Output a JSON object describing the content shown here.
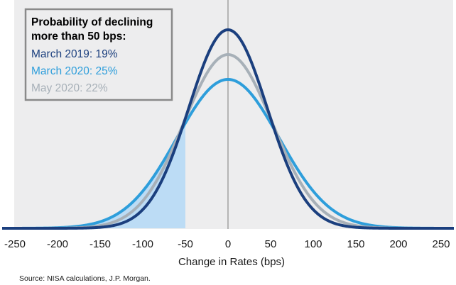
{
  "chart_data": {
    "type": "line",
    "xlabel": "Change in Rates (bps)",
    "ylabel": "",
    "xlim": [
      -265,
      265
    ],
    "x_ticks": [
      -250,
      -200,
      -150,
      -100,
      -50,
      0,
      50,
      100,
      150,
      200,
      250
    ],
    "x_tick_labels": [
      "-250",
      "-200",
      "-150",
      "-100",
      "-50",
      "0",
      "50",
      "100",
      "150",
      "200",
      "250"
    ],
    "shaded_region": {
      "from": -265,
      "to": -50,
      "series": "March 2020",
      "color": "#bcdcf5"
    },
    "vertical_reference_line": 0,
    "series": [
      {
        "name": "March 2020",
        "mean": 0,
        "std_dev": 60,
        "peak_fraction": 0.72,
        "color": "#2e9edb"
      },
      {
        "name": "May 2020",
        "mean": 0,
        "std_dev": 52,
        "peak_fraction": 0.84,
        "color": "#a7b0b8"
      },
      {
        "name": "March 2019",
        "mean": 0,
        "std_dev": 46,
        "peak_fraction": 0.96,
        "color": "#1b3f7e"
      }
    ],
    "background_color": "#ededee",
    "legend_position": "top-left",
    "legend": {
      "title": "Probability of declining more than 50 bps:",
      "title_lines": [
        "Probability of declining",
        "more than 50 bps:"
      ],
      "entries": [
        {
          "label": "March 2019: 19%",
          "color": "#1b3f7e"
        },
        {
          "label": "March 2020: 25%",
          "color": "#2e9edb"
        },
        {
          "label": "May 2020: 22%",
          "color": "#a7b0b8"
        }
      ]
    },
    "source": "Source: NISA calculations, J.P. Morgan."
  }
}
